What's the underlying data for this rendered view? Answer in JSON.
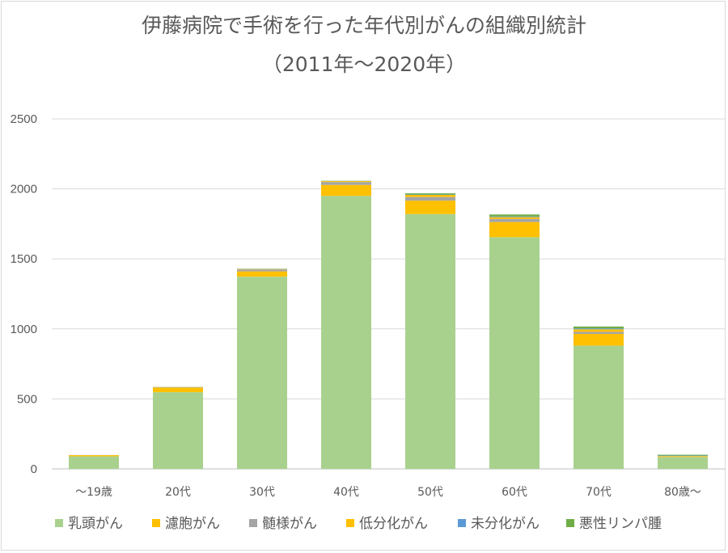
{
  "chart_data": {
    "type": "bar",
    "stacked": true,
    "title": "伊藤病院で手術を行った年代別がんの組織別統計",
    "subtitle": "（2011年～2020年）",
    "categories": [
      "～19歳",
      "20代",
      "30代",
      "40代",
      "50代",
      "60代",
      "70代",
      "80歳～"
    ],
    "ylim": [
      0,
      2500
    ],
    "yticks": [
      0,
      500,
      1000,
      1500,
      2000,
      2500
    ],
    "grid": true,
    "legend_position": "bottom",
    "series": [
      {
        "name": "乳頭がん",
        "color": "#a9d18e",
        "values": [
          90,
          548,
          1373,
          1950,
          1820,
          1655,
          880,
          85
        ]
      },
      {
        "name": "濾胞がん",
        "color": "#ffc000",
        "values": [
          8,
          33,
          38,
          78,
          96,
          108,
          84,
          4
        ]
      },
      {
        "name": "髄様がん",
        "color": "#a5a5a5",
        "values": [
          1,
          3,
          14,
          21,
          26,
          23,
          15,
          1
        ]
      },
      {
        "name": "低分化がん",
        "color": "#ffc000",
        "values": [
          0,
          1,
          3,
          6,
          15,
          12,
          18,
          2
        ]
      },
      {
        "name": "未分化がん",
        "color": "#5b9bd5",
        "values": [
          0,
          0,
          1,
          1,
          3,
          5,
          6,
          3
        ]
      },
      {
        "name": "悪性リンパ腫",
        "color": "#70ad47",
        "values": [
          0,
          1,
          1,
          2,
          8,
          14,
          14,
          6
        ]
      }
    ]
  }
}
